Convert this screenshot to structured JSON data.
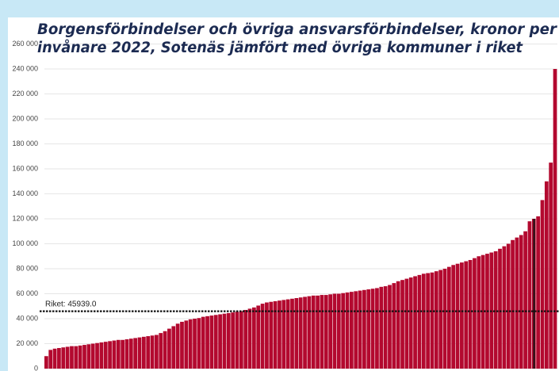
{
  "chart_data": {
    "type": "bar",
    "title": [
      "Borgensförbindelser och övriga ansvarsförbindelser, kronor per",
      "invånare 2022, Sotenäs jämfört med övriga kommuner i riket"
    ],
    "categories": [
      null,
      null,
      null,
      null,
      null,
      null,
      null,
      null,
      null,
      null,
      null,
      null,
      null,
      null,
      null,
      null,
      null,
      null,
      null,
      null,
      null,
      null,
      null,
      null,
      null,
      null,
      null,
      null,
      null,
      null,
      null,
      null,
      null,
      null,
      null,
      null,
      null,
      null,
      null,
      null,
      null,
      null,
      null,
      null,
      null,
      null,
      null,
      null,
      null,
      null,
      null,
      null,
      null,
      null,
      null,
      null,
      null,
      null,
      null,
      null,
      null,
      null,
      null,
      null,
      null,
      null,
      null,
      null,
      null,
      null,
      null,
      null,
      null,
      null,
      null,
      null,
      null,
      null,
      null,
      null,
      null,
      null,
      null,
      null,
      null,
      null,
      null,
      null,
      null,
      null,
      null,
      null,
      null,
      null,
      null,
      null,
      null,
      null,
      null,
      null,
      null,
      null,
      null,
      null,
      null,
      null,
      null,
      null,
      null,
      null,
      null,
      null,
      null,
      null,
      null,
      null,
      null,
      null,
      null,
      null,
      null
    ],
    "values": [
      10000,
      15000,
      16000,
      16500,
      17000,
      17500,
      18000,
      18000,
      18500,
      19000,
      19500,
      20000,
      20500,
      21000,
      21500,
      22000,
      22500,
      23000,
      23000,
      23500,
      24000,
      24500,
      25000,
      25500,
      26000,
      26500,
      27000,
      28500,
      30000,
      32000,
      34000,
      36000,
      37500,
      38500,
      39500,
      40000,
      40500,
      41500,
      42000,
      42500,
      43000,
      43500,
      44000,
      44500,
      45000,
      45500,
      46000,
      47000,
      48000,
      49000,
      50500,
      52000,
      53000,
      53500,
      54000,
      54500,
      55000,
      55500,
      56000,
      56500,
      57000,
      57500,
      58000,
      58500,
      58500,
      59000,
      59000,
      59500,
      60000,
      60000,
      60500,
      61000,
      61500,
      62000,
      62500,
      63000,
      63500,
      64000,
      64500,
      65500,
      66000,
      67000,
      68500,
      70000,
      71000,
      72000,
      73000,
      74000,
      75000,
      76000,
      76500,
      77000,
      78000,
      79000,
      80000,
      81500,
      83000,
      84000,
      85000,
      86000,
      87000,
      88500,
      90000,
      91000,
      92000,
      93000,
      94000,
      96000,
      98000,
      100000,
      103000,
      105000,
      107000,
      110000,
      118000,
      120000,
      122000,
      135000,
      150000,
      165000,
      240000
    ],
    "color": "#b3092f",
    "highlight_index": 115,
    "highlight_color": "#111111",
    "reference": {
      "value": 45939,
      "label": "Riket: 45939.0"
    },
    "ylim": [
      0,
      260000
    ],
    "yticks": [
      {
        "value": 0,
        "label": "0"
      },
      {
        "value": 20000,
        "label": "20 000"
      },
      {
        "value": 40000,
        "label": "40 000"
      },
      {
        "value": 60000,
        "label": "60 000"
      },
      {
        "value": 80000,
        "label": "80 000"
      },
      {
        "value": 100000,
        "label": "100 000"
      },
      {
        "value": 120000,
        "label": "120 000"
      },
      {
        "value": 140000,
        "label": "140 000"
      },
      {
        "value": 160000,
        "label": "160 000"
      },
      {
        "value": 180000,
        "label": "180 000"
      },
      {
        "value": 200000,
        "label": "200 000"
      },
      {
        "value": 220000,
        "label": "220 000"
      },
      {
        "value": 240000,
        "label": "240 000"
      },
      {
        "value": 260000,
        "label": "260 000"
      }
    ],
    "grid": true
  }
}
